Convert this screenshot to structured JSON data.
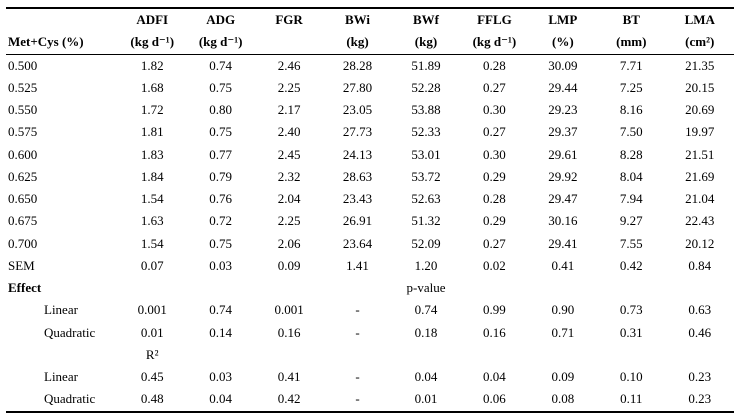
{
  "table": {
    "row_label_header": "Met+Cys (%)",
    "columns": [
      {
        "name": "ADFI",
        "unit": "(kg d⁻¹)"
      },
      {
        "name": "ADG",
        "unit": "(kg d⁻¹)"
      },
      {
        "name": "FGR",
        "unit": ""
      },
      {
        "name": "BWi",
        "unit": "(kg)"
      },
      {
        "name": "BWf",
        "unit": "(kg)"
      },
      {
        "name": "FFLG",
        "unit": "(kg d⁻¹)"
      },
      {
        "name": "LMP",
        "unit": "(%)"
      },
      {
        "name": "BT",
        "unit": "(mm)"
      },
      {
        "name": "LMA",
        "unit": "(cm²)"
      }
    ],
    "rows": [
      {
        "label": "0.500",
        "values": [
          "1.82",
          "0.74",
          "2.46",
          "28.28",
          "51.89",
          "0.28",
          "30.09",
          "7.71",
          "21.35"
        ]
      },
      {
        "label": "0.525",
        "values": [
          "1.68",
          "0.75",
          "2.25",
          "27.80",
          "52.28",
          "0.27",
          "29.44",
          "7.25",
          "20.15"
        ]
      },
      {
        "label": "0.550",
        "values": [
          "1.72",
          "0.80",
          "2.17",
          "23.05",
          "53.88",
          "0.30",
          "29.23",
          "8.16",
          "20.69"
        ]
      },
      {
        "label": "0.575",
        "values": [
          "1.81",
          "0.75",
          "2.40",
          "27.73",
          "52.33",
          "0.27",
          "29.37",
          "7.50",
          "19.97"
        ]
      },
      {
        "label": "0.600",
        "values": [
          "1.83",
          "0.77",
          "2.45",
          "24.13",
          "53.01",
          "0.30",
          "29.61",
          "8.28",
          "21.51"
        ]
      },
      {
        "label": "0.625",
        "values": [
          "1.84",
          "0.79",
          "2.32",
          "28.63",
          "53.72",
          "0.29",
          "29.92",
          "8.04",
          "21.69"
        ]
      },
      {
        "label": "0.650",
        "values": [
          "1.54",
          "0.76",
          "2.04",
          "23.43",
          "52.63",
          "0.28",
          "29.47",
          "7.94",
          "21.04"
        ]
      },
      {
        "label": "0.675",
        "values": [
          "1.63",
          "0.72",
          "2.25",
          "26.91",
          "51.32",
          "0.29",
          "30.16",
          "9.27",
          "22.43"
        ]
      },
      {
        "label": "0.700",
        "values": [
          "1.54",
          "0.75",
          "2.06",
          "23.64",
          "52.09",
          "0.27",
          "29.41",
          "7.55",
          "20.12"
        ]
      },
      {
        "label": "SEM",
        "values": [
          "0.07",
          "0.03",
          "0.09",
          "1.41",
          "1.20",
          "0.02",
          "0.41",
          "0.42",
          "0.84"
        ]
      },
      {
        "label": "Effect",
        "bold": true,
        "span_text": "p-value"
      },
      {
        "label": "Linear",
        "indent": true,
        "values": [
          "0.001",
          "0.74",
          "0.001",
          "-",
          "0.74",
          "0.99",
          "0.90",
          "0.73",
          "0.63"
        ]
      },
      {
        "label": "Quadratic",
        "indent": true,
        "values": [
          "0.01",
          "0.14",
          "0.16",
          "-",
          "0.18",
          "0.16",
          "0.71",
          "0.31",
          "0.46"
        ]
      },
      {
        "label": "",
        "values": [
          "R²",
          "",
          "",
          "",
          "",
          "",
          "",
          "",
          ""
        ]
      },
      {
        "label": "Linear",
        "indent": true,
        "values": [
          "0.45",
          "0.03",
          "0.41",
          "-",
          "0.04",
          "0.04",
          "0.09",
          "0.10",
          "0.23"
        ]
      },
      {
        "label": "Quadratic",
        "indent": true,
        "values": [
          "0.48",
          "0.04",
          "0.42",
          "-",
          "0.01",
          "0.06",
          "0.08",
          "0.11",
          "0.23"
        ]
      }
    ]
  }
}
